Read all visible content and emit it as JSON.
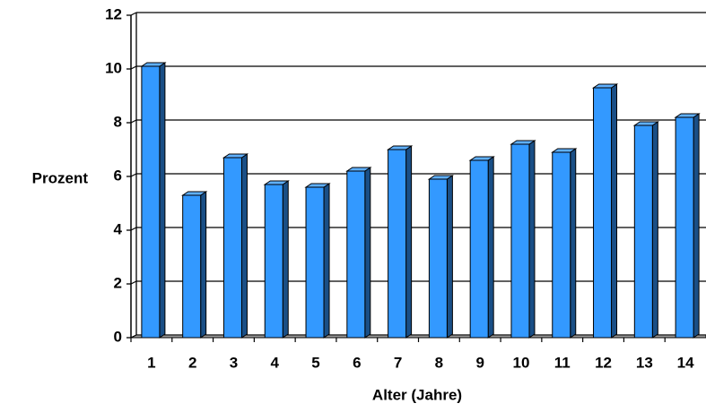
{
  "chart_data": {
    "type": "bar",
    "title": "",
    "xlabel": "Alter (Jahre)",
    "ylabel": "Prozent",
    "categories": [
      "1",
      "2",
      "3",
      "4",
      "5",
      "6",
      "7",
      "8",
      "9",
      "10",
      "11",
      "12",
      "13",
      "14"
    ],
    "values": [
      10.1,
      5.3,
      6.7,
      5.7,
      5.6,
      6.2,
      7.0,
      5.9,
      6.6,
      7.2,
      6.9,
      9.3,
      7.9,
      8.2
    ],
    "yticks": [
      "0",
      "2",
      "4",
      "6",
      "8",
      "10",
      "12"
    ],
    "ylim": [
      0,
      12
    ],
    "grid": true,
    "legend": "none",
    "colors": {
      "bar_front": "#3399ff",
      "bar_side": "#1a4f86",
      "bar_top": "#5fb0ff",
      "outline": "#000000"
    }
  }
}
